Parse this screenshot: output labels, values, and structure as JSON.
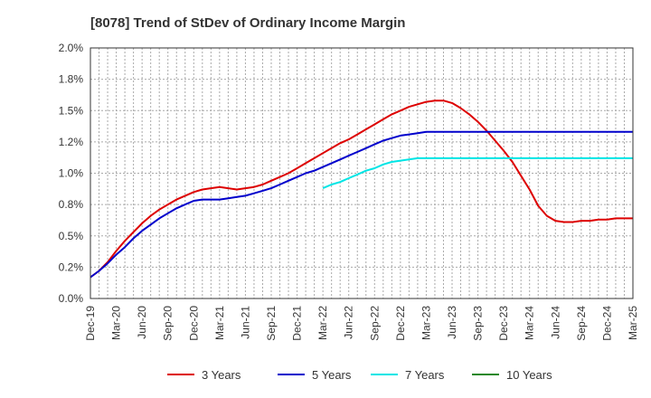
{
  "chart_data": {
    "type": "line",
    "title": "[8078]  Trend of StDev of Ordinary Income Margin",
    "xlabel": "",
    "ylabel": "",
    "ylim": [
      0,
      2.0
    ],
    "y_ticks": [
      "0.0%",
      "0.2%",
      "0.5%",
      "0.8%",
      "1.0%",
      "1.2%",
      "1.5%",
      "1.8%",
      "2.0%"
    ],
    "x_ticks": [
      "Dec-19",
      "Mar-20",
      "Jun-20",
      "Sep-20",
      "Dec-20",
      "Mar-21",
      "Jun-21",
      "Sep-21",
      "Dec-21",
      "Mar-22",
      "Jun-22",
      "Sep-22",
      "Dec-22",
      "Mar-23",
      "Jun-23",
      "Sep-23",
      "Dec-23",
      "Mar-24",
      "Jun-24",
      "Sep-24",
      "Dec-24",
      "Mar-25"
    ],
    "grid": true,
    "legend_position": "bottom",
    "series": [
      {
        "name": "3 Years",
        "color": "#dd0000",
        "start_index": 0,
        "values": [
          0.17,
          0.22,
          0.29,
          0.38,
          0.46,
          0.53,
          0.6,
          0.66,
          0.71,
          0.75,
          0.79,
          0.82,
          0.85,
          0.87,
          0.88,
          0.89,
          0.88,
          0.87,
          0.88,
          0.89,
          0.91,
          0.94,
          0.97,
          1.0,
          1.04,
          1.08,
          1.12,
          1.16,
          1.2,
          1.24,
          1.27,
          1.31,
          1.35,
          1.39,
          1.43,
          1.47,
          1.5,
          1.53,
          1.55,
          1.57,
          1.58,
          1.58,
          1.56,
          1.52,
          1.47,
          1.41,
          1.34,
          1.26,
          1.18,
          1.09,
          0.98,
          0.87,
          0.74,
          0.66,
          0.62,
          0.61,
          0.61,
          0.62,
          0.62,
          0.63,
          0.63,
          0.64,
          0.64,
          0.64
        ]
      },
      {
        "name": "5 Years",
        "color": "#0000cc",
        "start_index": 0,
        "values": [
          0.17,
          0.22,
          0.28,
          0.35,
          0.41,
          0.48,
          0.54,
          0.59,
          0.64,
          0.68,
          0.72,
          0.75,
          0.78,
          0.79,
          0.79,
          0.79,
          0.8,
          0.81,
          0.82,
          0.84,
          0.86,
          0.88,
          0.91,
          0.94,
          0.97,
          1.0,
          1.02,
          1.05,
          1.08,
          1.11,
          1.14,
          1.17,
          1.2,
          1.23,
          1.26,
          1.28,
          1.3,
          1.31,
          1.32,
          1.33,
          1.33,
          1.33,
          1.33,
          1.33,
          1.33,
          1.33,
          1.33,
          1.33,
          1.33,
          1.33,
          1.33,
          1.33,
          1.33,
          1.33,
          1.33,
          1.33,
          1.33,
          1.33,
          1.33,
          1.33,
          1.33,
          1.33,
          1.33,
          1.33
        ]
      },
      {
        "name": "7 Years",
        "color": "#00e5e5",
        "start_index": 27,
        "values": [
          0.88,
          0.91,
          0.93,
          0.96,
          0.99,
          1.02,
          1.04,
          1.07,
          1.09,
          1.1,
          1.11,
          1.12,
          1.12,
          1.12,
          1.12,
          1.12,
          1.12,
          1.12,
          1.12,
          1.12,
          1.12,
          1.12,
          1.12,
          1.12,
          1.12,
          1.12,
          1.12,
          1.12,
          1.12,
          1.12,
          1.12,
          1.12,
          1.12,
          1.12,
          1.12,
          1.12,
          1.12
        ]
      },
      {
        "name": "10 Years",
        "color": "#228822",
        "start_index": 0,
        "values": []
      }
    ]
  }
}
